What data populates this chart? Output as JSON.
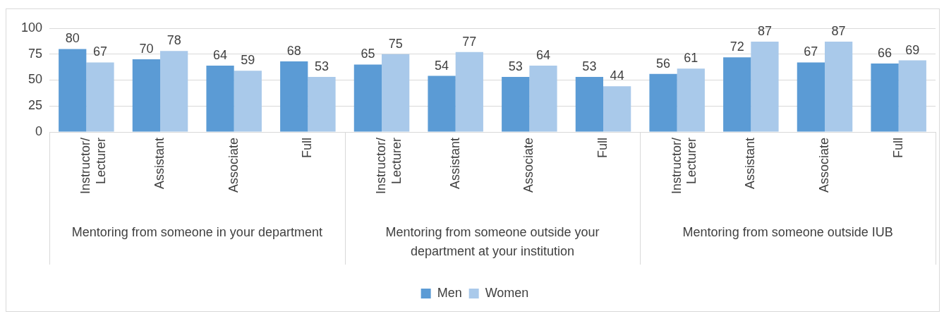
{
  "chart_data": {
    "type": "bar",
    "categories": [
      "Instructor/Lecturer",
      "Assistant",
      "Associate",
      "Full",
      "Instructor/Lecturer",
      "Assistant",
      "Associate",
      "Full",
      "Instructor/Lecturer",
      "Assistant",
      "Associate",
      "Full"
    ],
    "series": [
      {
        "name": "Men",
        "color": "#5b9bd5",
        "values": [
          80,
          70,
          64,
          68,
          65,
          54,
          53,
          53,
          56,
          72,
          67,
          66
        ]
      },
      {
        "name": "Women",
        "color": "#a9c9ea",
        "values": [
          67,
          78,
          59,
          53,
          75,
          77,
          64,
          44,
          61,
          87,
          87,
          69
        ]
      }
    ],
    "ylim": [
      0,
      100
    ],
    "yticks": [
      0,
      25,
      50,
      75,
      100
    ],
    "grid": "y",
    "legend": "bottom",
    "data_labels": true,
    "annotations": [
      "Mentoring from someone in your department",
      "Mentoring from someone outside your department at your institution",
      "Mentoring from someone outside IUB"
    ]
  }
}
